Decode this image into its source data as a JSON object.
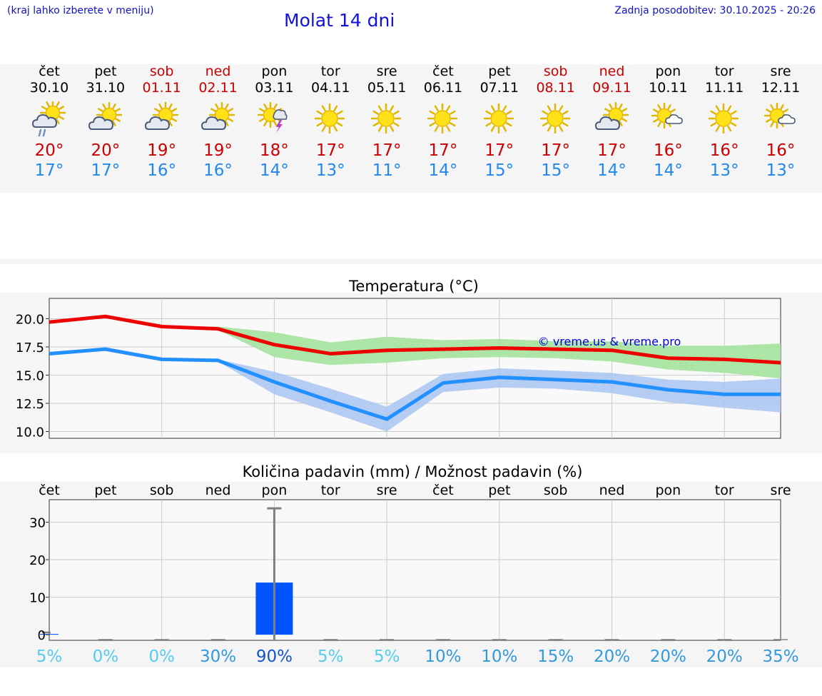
{
  "header": {
    "hint": "(kraj lahko izberete v meniju)",
    "title": "Molat 14 dni",
    "updated": "Zadnja posodobitev: 30.10.2025 - 20:26"
  },
  "colors": {
    "link_blue": "#1111cc",
    "max_temp": "#cc0000",
    "min_temp": "#2288ee",
    "max_line": "#ee0000",
    "min_line": "#2290ff",
    "max_band": "#a8e4a0",
    "min_band": "#a9c6f2",
    "bar": "#0055ff"
  },
  "days": [
    {
      "name": "čet",
      "date": "30.10",
      "weekend": false,
      "icon": "partly-cloudy-rain-icon",
      "hi": "20°",
      "lo": "17°"
    },
    {
      "name": "pet",
      "date": "31.10",
      "weekend": false,
      "icon": "partly-cloudy-icon",
      "hi": "20°",
      "lo": "17°"
    },
    {
      "name": "sob",
      "date": "01.11",
      "weekend": true,
      "icon": "partly-cloudy-icon",
      "hi": "19°",
      "lo": "16°"
    },
    {
      "name": "ned",
      "date": "02.11",
      "weekend": true,
      "icon": "partly-cloudy-icon",
      "hi": "19°",
      "lo": "16°"
    },
    {
      "name": "pon",
      "date": "03.11",
      "weekend": false,
      "icon": "sun-thunderstorm-icon",
      "hi": "18°",
      "lo": "14°"
    },
    {
      "name": "tor",
      "date": "04.11",
      "weekend": false,
      "icon": "sun-icon",
      "hi": "17°",
      "lo": "13°"
    },
    {
      "name": "sre",
      "date": "05.11",
      "weekend": false,
      "icon": "sun-icon",
      "hi": "17°",
      "lo": "11°"
    },
    {
      "name": "čet",
      "date": "06.11",
      "weekend": false,
      "icon": "sun-icon",
      "hi": "17°",
      "lo": "14°"
    },
    {
      "name": "pet",
      "date": "07.11",
      "weekend": false,
      "icon": "sun-icon",
      "hi": "17°",
      "lo": "15°"
    },
    {
      "name": "sob",
      "date": "08.11",
      "weekend": true,
      "icon": "sun-icon",
      "hi": "17°",
      "lo": "15°"
    },
    {
      "name": "ned",
      "date": "09.11",
      "weekend": true,
      "icon": "partly-cloudy-icon",
      "hi": "17°",
      "lo": "14°"
    },
    {
      "name": "pon",
      "date": "10.11",
      "weekend": false,
      "icon": "sun-small-cloud-icon",
      "hi": "16°",
      "lo": "14°"
    },
    {
      "name": "tor",
      "date": "11.11",
      "weekend": false,
      "icon": "sun-icon",
      "hi": "16°",
      "lo": "13°"
    },
    {
      "name": "sre",
      "date": "12.11",
      "weekend": false,
      "icon": "sun-small-cloud-icon",
      "hi": "16°",
      "lo": "13°"
    }
  ],
  "chart_data": [
    {
      "type": "line",
      "title": "Temperatura (°C)",
      "watermark": "© vreme.us & vreme.pro",
      "x": [
        0,
        1,
        2,
        3,
        4,
        5,
        6,
        7,
        8,
        9,
        10,
        11,
        12,
        13
      ],
      "ylim": [
        9.4,
        21.8
      ],
      "yticks": [
        "20.0",
        "17.5",
        "15.0",
        "12.5",
        "10.0"
      ],
      "ytick_values": [
        20.0,
        17.5,
        15.0,
        12.5,
        10.0
      ],
      "series": [
        {
          "name": "max",
          "values": [
            19.7,
            20.2,
            19.3,
            19.1,
            17.7,
            16.9,
            17.2,
            17.3,
            17.4,
            17.3,
            17.2,
            16.5,
            16.4,
            16.1
          ],
          "band_low": [
            19.7,
            20.2,
            19.3,
            19.0,
            16.6,
            15.9,
            16.1,
            16.5,
            16.6,
            16.5,
            16.2,
            15.5,
            15.2,
            14.7
          ],
          "band_high": [
            19.7,
            20.2,
            19.3,
            19.3,
            18.8,
            17.9,
            18.4,
            18.1,
            18.2,
            18.0,
            18.0,
            17.6,
            17.6,
            17.8
          ]
        },
        {
          "name": "min",
          "values": [
            16.9,
            17.3,
            16.4,
            16.3,
            14.4,
            12.7,
            11.1,
            14.3,
            14.8,
            14.6,
            14.4,
            13.7,
            13.3,
            13.3
          ],
          "band_low": [
            16.9,
            17.3,
            16.4,
            16.2,
            13.3,
            11.7,
            10.0,
            13.5,
            13.9,
            13.8,
            13.4,
            12.6,
            12.1,
            11.7
          ],
          "band_high": [
            16.9,
            17.3,
            16.4,
            16.4,
            15.3,
            13.8,
            12.2,
            15.1,
            15.6,
            15.4,
            15.2,
            14.6,
            14.4,
            14.7
          ]
        }
      ]
    },
    {
      "type": "bar",
      "title": "Količina padavin (mm) / Možnost padavin (%)",
      "categories": [
        "čet",
        "pet",
        "sob",
        "ned",
        "pon",
        "tor",
        "sre",
        "čet",
        "pet",
        "sob",
        "ned",
        "pon",
        "tor",
        "sre"
      ],
      "values": [
        0.2,
        0,
        0,
        0,
        13.9,
        0,
        0,
        0,
        0,
        0,
        0,
        0,
        0,
        0
      ],
      "error_max": [
        0.6,
        0,
        0,
        0,
        33.7,
        0,
        0,
        0,
        0,
        0,
        0,
        0,
        0,
        0
      ],
      "ylim": [
        -1.5,
        36
      ],
      "yticks": [
        "30",
        "20",
        "10",
        "0"
      ],
      "ytick_values": [
        30,
        20,
        10,
        0
      ],
      "probability": [
        "5%",
        "0%",
        "0%",
        "30%",
        "90%",
        "5%",
        "5%",
        "10%",
        "10%",
        "15%",
        "20%",
        "20%",
        "20%",
        "35%"
      ],
      "probability_colors": [
        "#55ccee",
        "#55ccee",
        "#55ccee",
        "#3399dd",
        "#1155cc",
        "#55ccee",
        "#55ccee",
        "#3399dd",
        "#3399dd",
        "#3399dd",
        "#3399dd",
        "#3399dd",
        "#3399dd",
        "#3399dd"
      ]
    }
  ]
}
